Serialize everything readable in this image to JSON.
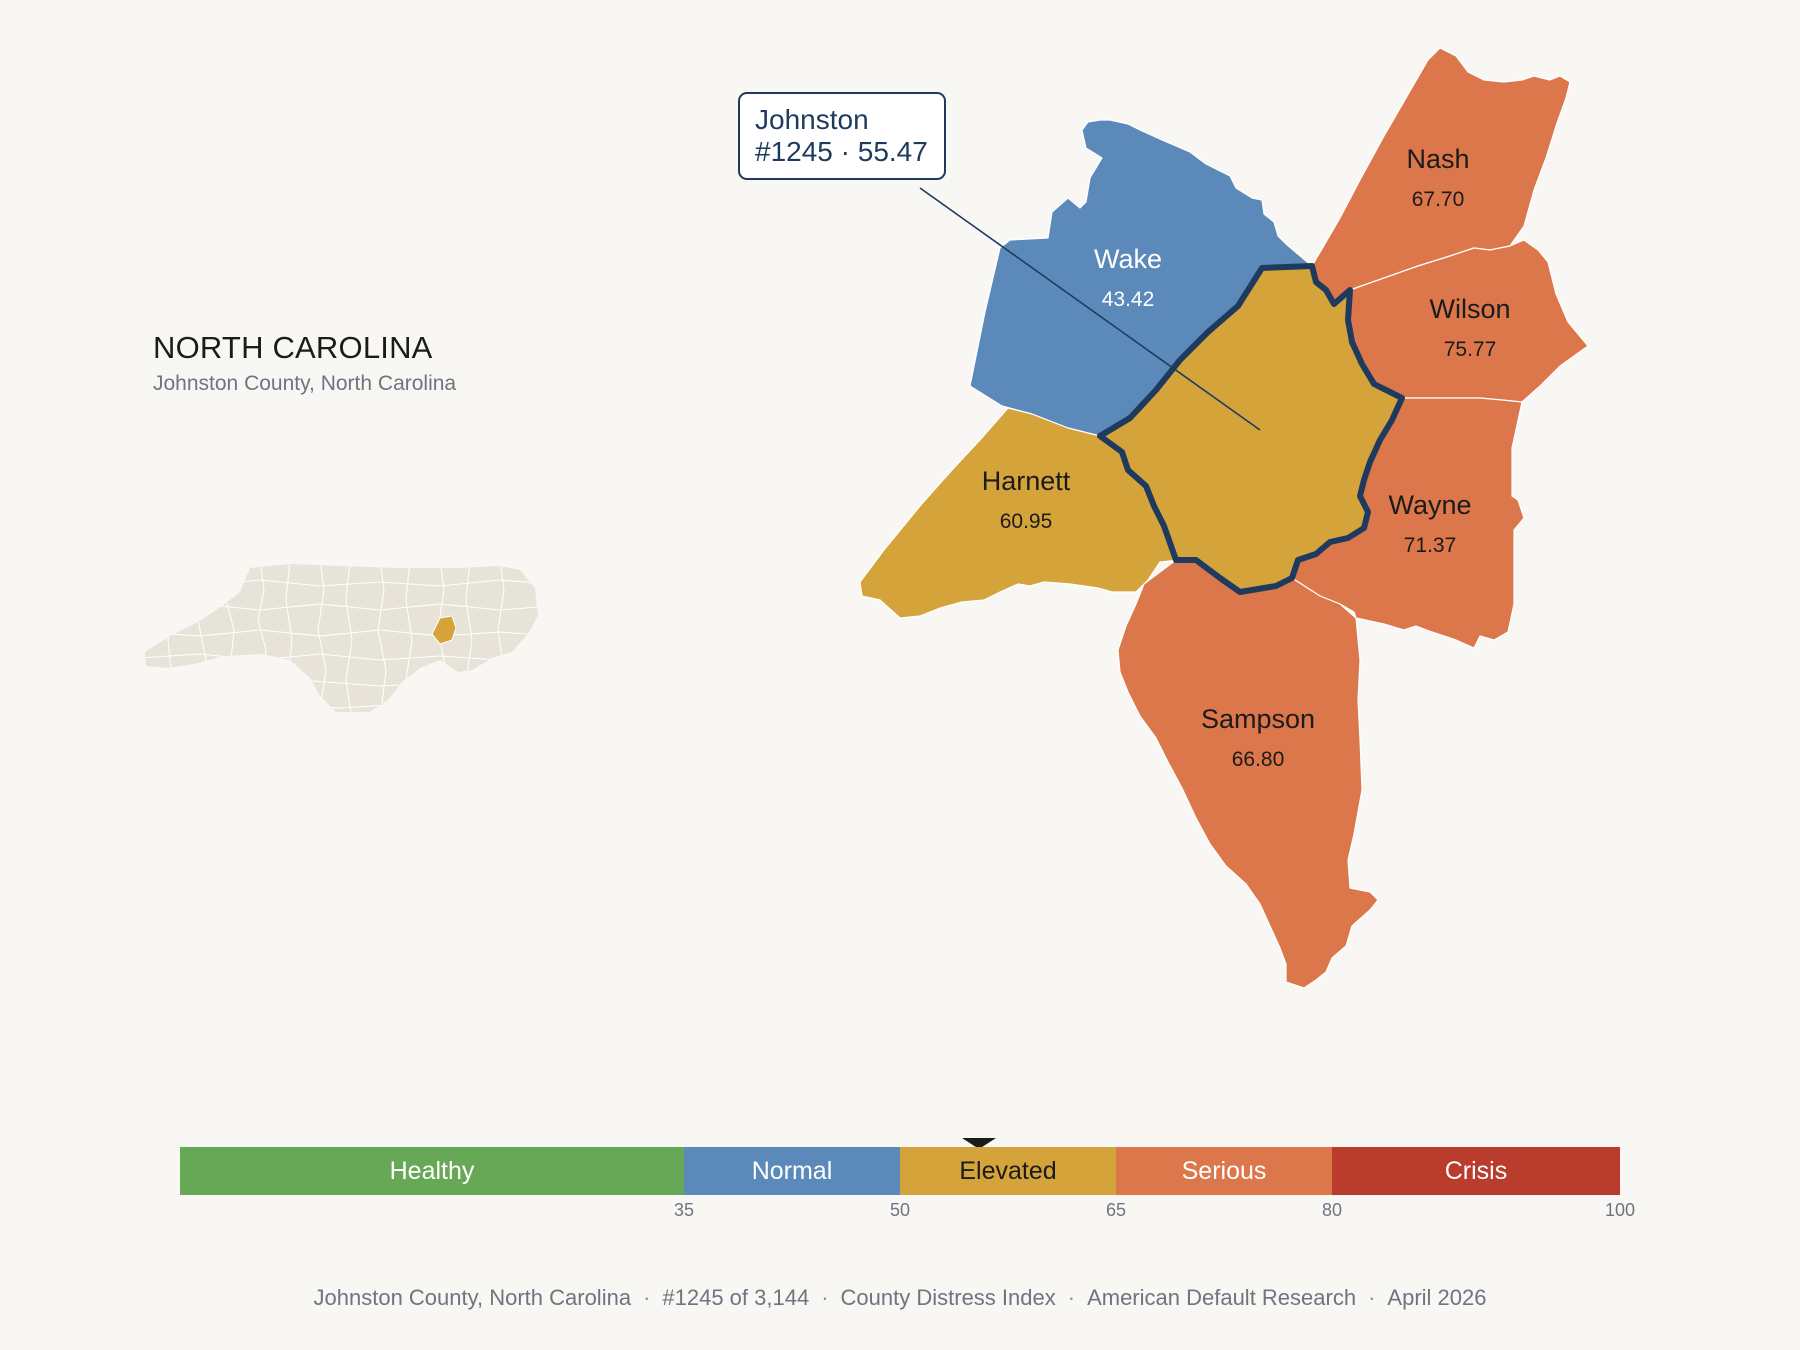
{
  "header": {
    "title": "NORTH CAROLINA",
    "subtitle": "Johnston County, North Carolina"
  },
  "focus": {
    "name": "Johnston",
    "rank_score": "#1245 · 55.47",
    "value": 55.47,
    "category": "Elevated",
    "color": "#d4a43a"
  },
  "counties": [
    {
      "id": "wake",
      "name": "Wake",
      "value": "43.42",
      "score": 43.42,
      "category": "Normal",
      "color": "#5b8aba",
      "text_color": "#ffffff"
    },
    {
      "id": "nash",
      "name": "Nash",
      "value": "67.70",
      "score": 67.7,
      "category": "Serious",
      "color": "#db774a",
      "text_color": "#1b1b1b"
    },
    {
      "id": "wilson",
      "name": "Wilson",
      "value": "75.77",
      "score": 75.77,
      "category": "Serious",
      "color": "#db774a",
      "text_color": "#1b1b1b"
    },
    {
      "id": "harnett",
      "name": "Harnett",
      "value": "60.95",
      "score": 60.95,
      "category": "Elevated",
      "color": "#d4a43a",
      "text_color": "#1b1b1b"
    },
    {
      "id": "wayne",
      "name": "Wayne",
      "value": "71.37",
      "score": 71.37,
      "category": "Serious",
      "color": "#db774a",
      "text_color": "#1b1b1b"
    },
    {
      "id": "sampson",
      "name": "Sampson",
      "value": "66.80",
      "score": 66.8,
      "category": "Serious",
      "color": "#db774a",
      "text_color": "#1b1b1b"
    }
  ],
  "scale": {
    "segments": [
      {
        "label": "Healthy",
        "from": 0,
        "to": 35,
        "color": "#67a857",
        "text_color": "#ffffff"
      },
      {
        "label": "Normal",
        "from": 35,
        "to": 50,
        "color": "#5b8aba",
        "text_color": "#ffffff"
      },
      {
        "label": "Elevated",
        "from": 50,
        "to": 65,
        "color": "#d4a43a",
        "text_color": "#1b1b1b"
      },
      {
        "label": "Serious",
        "from": 65,
        "to": 80,
        "color": "#db774a",
        "text_color": "#ffffff"
      },
      {
        "label": "Crisis",
        "from": 80,
        "to": 100,
        "color": "#b93c2c",
        "text_color": "#ffffff"
      }
    ],
    "ticks": [
      "35",
      "50",
      "65",
      "80",
      "100"
    ],
    "marker_value": 55.47
  },
  "footer": {
    "items": [
      "Johnston County, North Carolina",
      "#1245 of 3,144",
      "County Distress Index",
      "American Default Research",
      "April 2026"
    ]
  },
  "colors": {
    "background": "#f9f7f4",
    "focus_outline": "#1e3a5f",
    "locator_fill": "#e8e3d8"
  }
}
